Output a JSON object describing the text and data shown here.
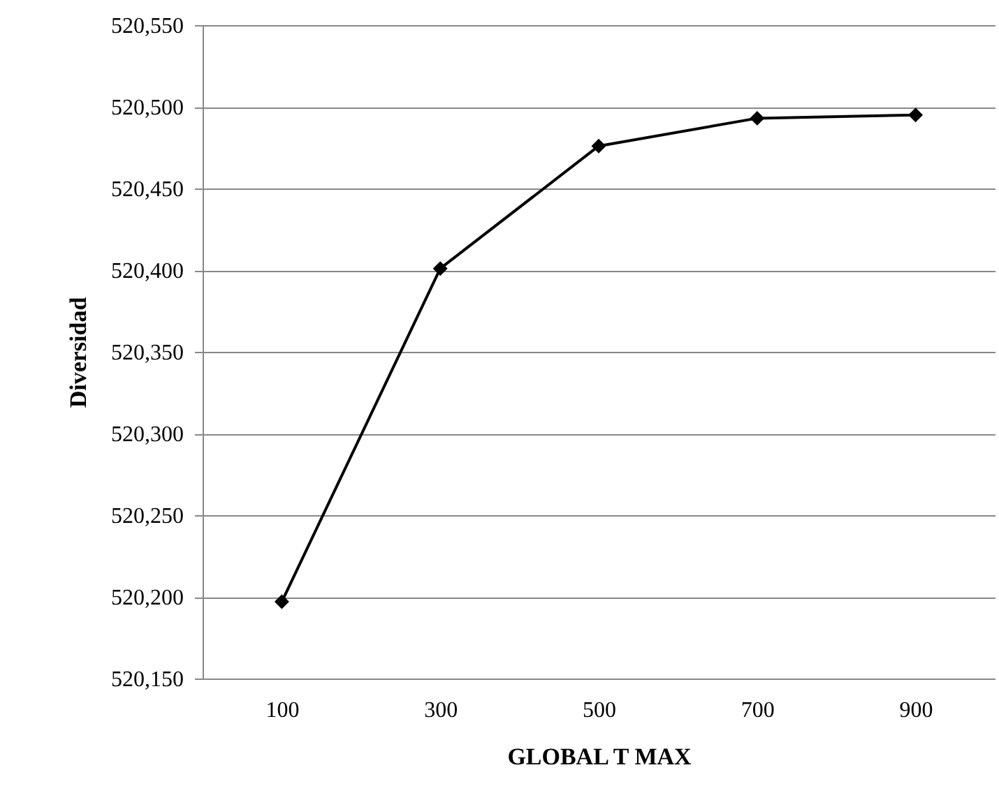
{
  "chart_data": {
    "type": "line",
    "xlabel": "GLOBAL T MAX",
    "ylabel": "Diversidad",
    "categories": [
      "100",
      "300",
      "500",
      "700",
      "900"
    ],
    "series": [
      {
        "color": "#000000",
        "values": [
          520197,
          520401,
          520476,
          520493,
          520495
        ]
      }
    ],
    "ylim": [
      520150,
      520550
    ],
    "yticks": [
      {
        "value": 520150,
        "label": "520,150"
      },
      {
        "value": 520200,
        "label": "520,200"
      },
      {
        "value": 520250,
        "label": "520,250"
      },
      {
        "value": 520300,
        "label": "520,300"
      },
      {
        "value": 520350,
        "label": "520,350"
      },
      {
        "value": 520400,
        "label": "520,400"
      },
      {
        "value": 520450,
        "label": "520,450"
      },
      {
        "value": 520500,
        "label": "520,500"
      },
      {
        "value": 520550,
        "label": "520,550"
      }
    ],
    "grid": "y",
    "marker": "diamond",
    "line_style": "solid"
  }
}
